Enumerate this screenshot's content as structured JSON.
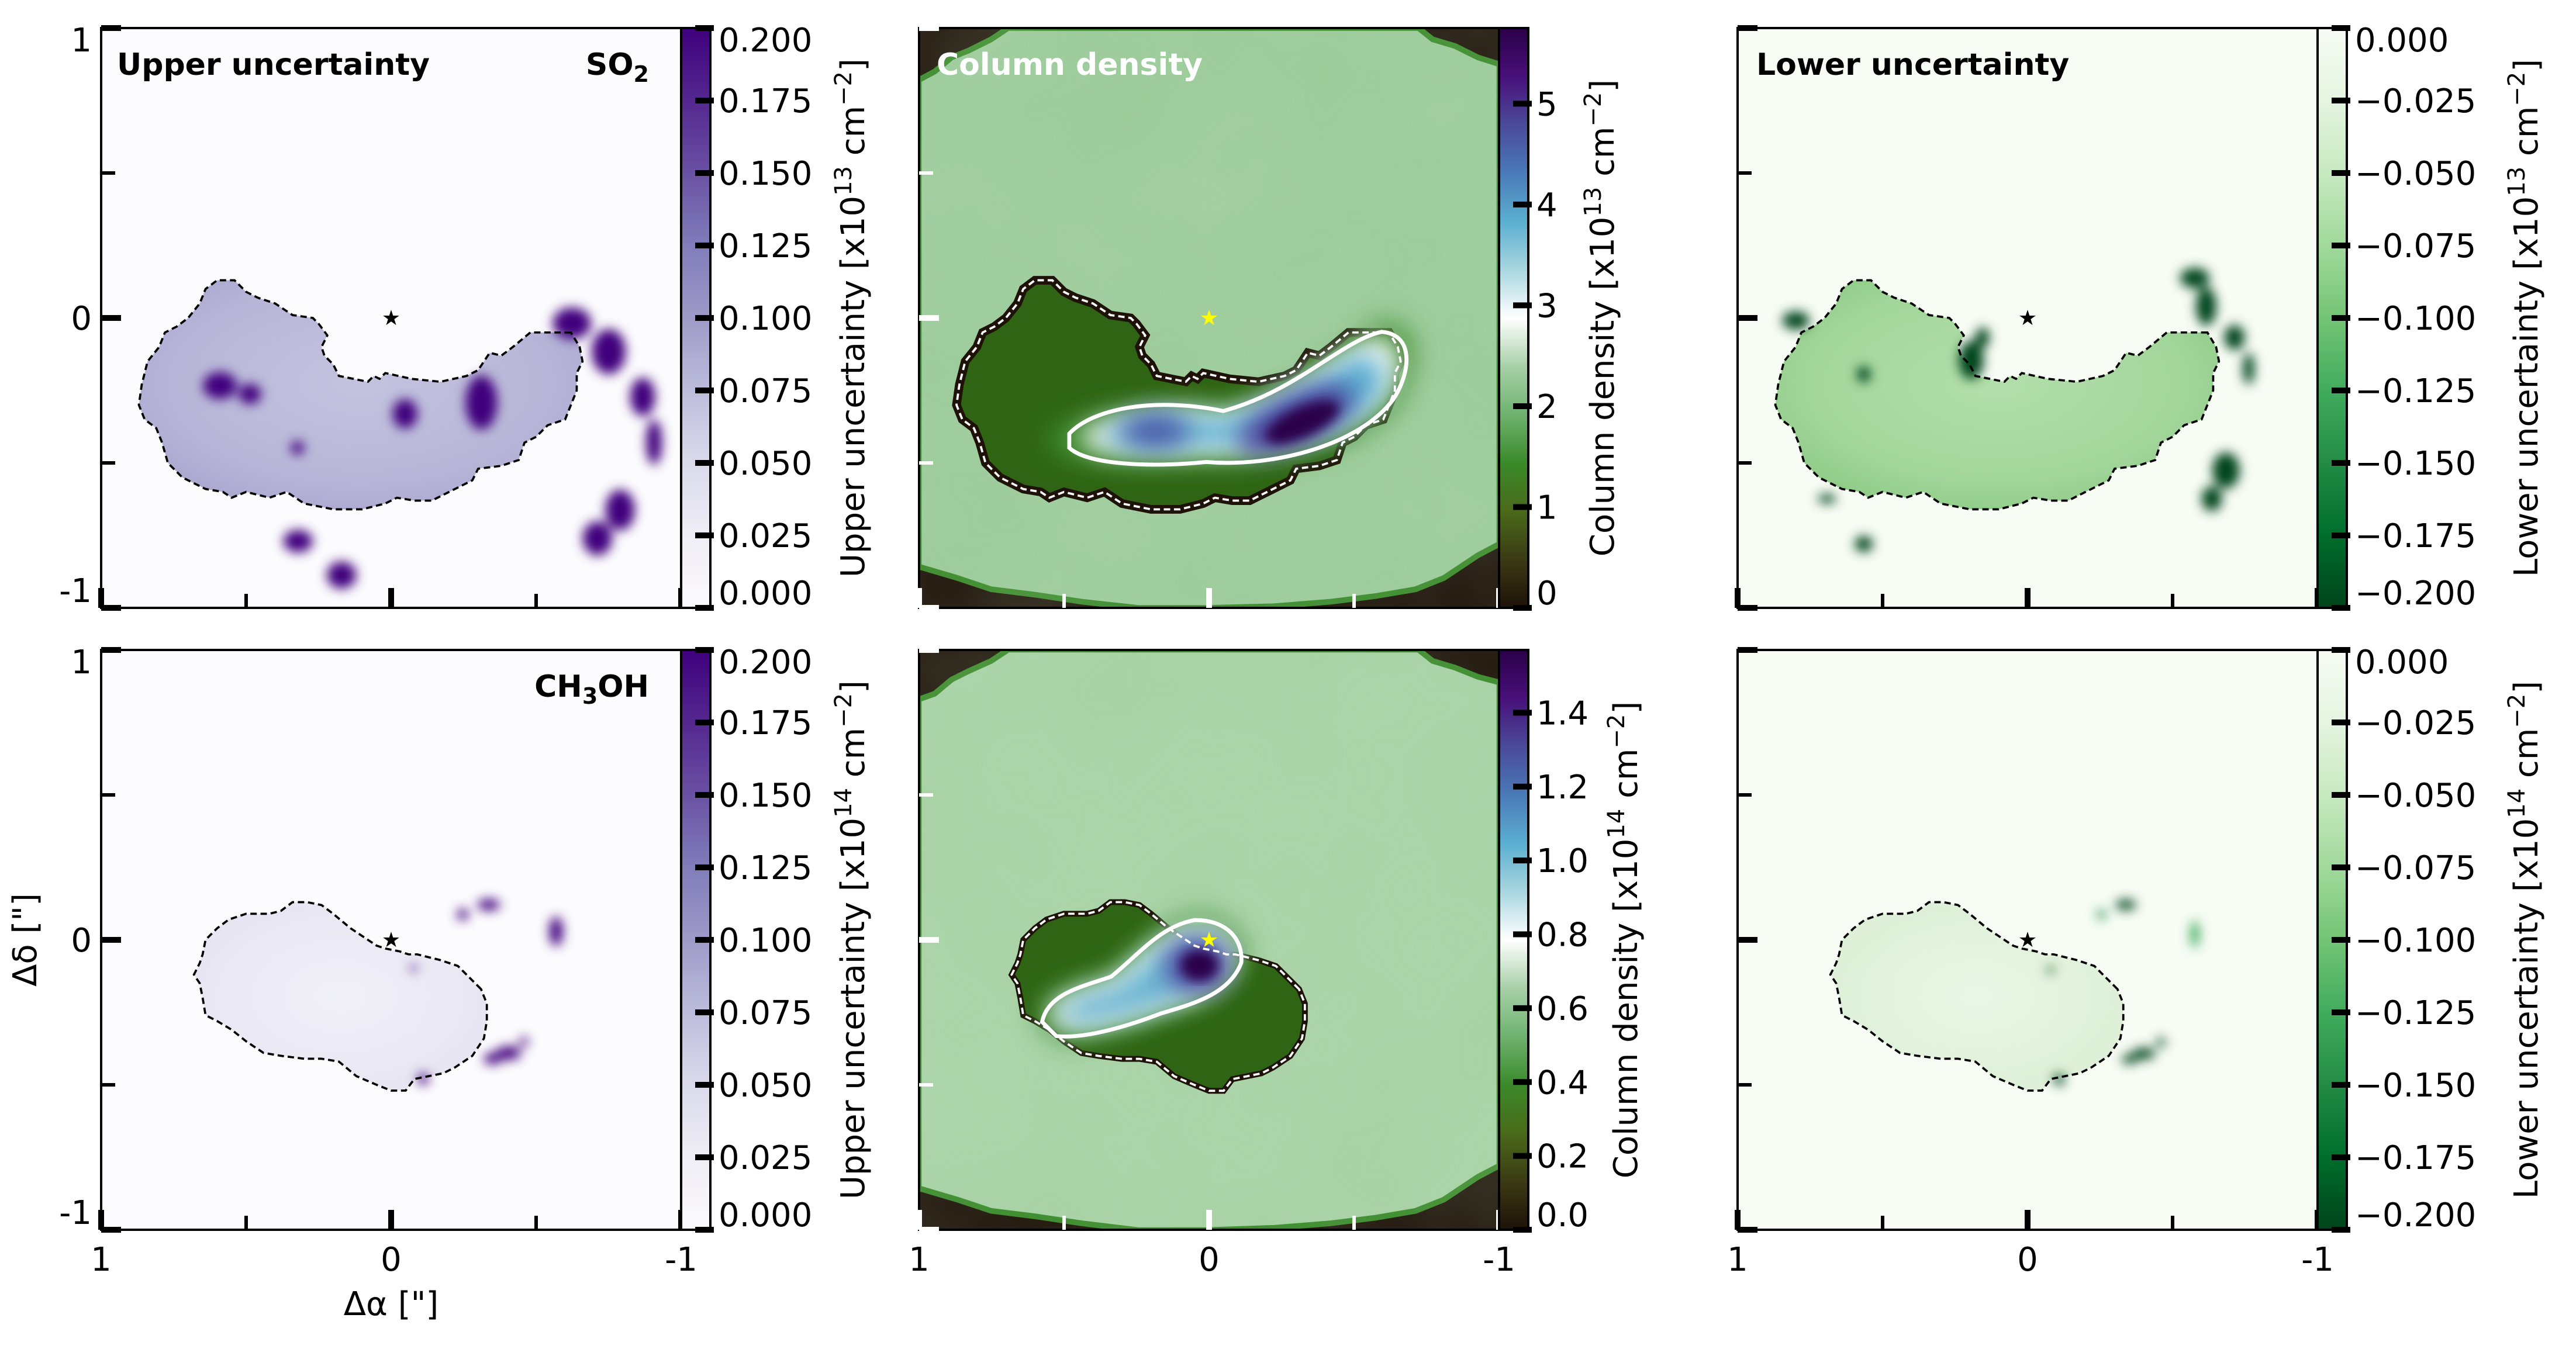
{
  "figure": {
    "xlabel": "Δα [\"]",
    "ylabel": "Δδ [\"]"
  },
  "chart_data": [
    {
      "type": "heatmap",
      "panel": "top-left",
      "molecule": "SO2",
      "molecule_label": "SO",
      "molecule_sub": "2",
      "title": "Upper uncertainty",
      "colormap": "Purples",
      "colorbar_label": "Upper uncertainty [x10",
      "colorbar_exp": "13",
      "colorbar_unit": " cm",
      "colorbar_unit_exp": "−2",
      "colorbar_unit_close": "]",
      "clim": [
        0.0,
        0.2
      ],
      "colorbar_ticks": [
        0.0,
        0.025,
        0.05,
        0.075,
        0.1,
        0.125,
        0.15,
        0.175,
        0.2
      ],
      "colorbar_tick_labels": [
        "0.000",
        "0.025",
        "0.050",
        "0.075",
        "0.100",
        "0.125",
        "0.150",
        "0.175",
        "0.200"
      ],
      "xlim": [
        1,
        -1
      ],
      "ylim": [
        -1,
        1
      ],
      "xticks": [
        1,
        0,
        -1
      ],
      "yticks": [
        1,
        0,
        -1
      ],
      "star": {
        "x": 0,
        "y": 0,
        "color": "#000000"
      },
      "contour_color": "#000000"
    },
    {
      "type": "heatmap",
      "panel": "top-middle",
      "molecule": "SO2",
      "title": "Column density",
      "colormap": "PRGn-like (brown-green-white-blue-purple)",
      "colorbar_label": "Column density [x10",
      "colorbar_exp": "13",
      "colorbar_unit": " cm",
      "colorbar_unit_exp": "−2",
      "colorbar_unit_close": "]",
      "clim": [
        0.0,
        5.75
      ],
      "colorbar_ticks": [
        0,
        1,
        2,
        3,
        4,
        5
      ],
      "colorbar_tick_labels": [
        "0",
        "1",
        "2",
        "3",
        "4",
        "5"
      ],
      "xlim": [
        1,
        -1
      ],
      "ylim": [
        -1,
        1
      ],
      "xticks": [
        1,
        0,
        -1
      ],
      "yticks": [
        1,
        0,
        -1
      ],
      "star": {
        "x": 0,
        "y": 0,
        "color": "#ffff00"
      },
      "contour_color": "#ffffff",
      "peak_value_approx": 5.6
    },
    {
      "type": "heatmap",
      "panel": "top-right",
      "molecule": "SO2",
      "title": "Lower uncertainty",
      "colormap": "Greens_r",
      "colorbar_label": "Lower uncertainty [x10",
      "colorbar_exp": "13",
      "colorbar_unit": " cm",
      "colorbar_unit_exp": "−2",
      "colorbar_unit_close": "]",
      "clim": [
        -0.2,
        0.0
      ],
      "colorbar_ticks": [
        0.0,
        -0.025,
        -0.05,
        -0.075,
        -0.1,
        -0.125,
        -0.15,
        -0.175,
        -0.2
      ],
      "colorbar_tick_labels": [
        "0.000",
        "−0.025",
        "−0.050",
        "−0.075",
        "−0.100",
        "−0.125",
        "−0.150",
        "−0.175",
        "−0.200"
      ],
      "xlim": [
        1,
        -1
      ],
      "ylim": [
        -1,
        1
      ],
      "xticks": [
        1,
        0,
        -1
      ],
      "yticks": [
        1,
        0,
        -1
      ],
      "star": {
        "x": 0,
        "y": 0,
        "color": "#000000"
      },
      "contour_color": "#000000"
    },
    {
      "type": "heatmap",
      "panel": "bottom-left",
      "molecule": "CH3OH",
      "molecule_label": "CH",
      "molecule_sub": "3",
      "molecule_tail": "OH",
      "title": "",
      "colormap": "Purples",
      "colorbar_label": "Upper uncertainty [x10",
      "colorbar_exp": "14",
      "colorbar_unit": " cm",
      "colorbar_unit_exp": "−2",
      "colorbar_unit_close": "]",
      "clim": [
        0.0,
        0.2
      ],
      "colorbar_ticks": [
        0.0,
        0.025,
        0.05,
        0.075,
        0.1,
        0.125,
        0.15,
        0.175,
        0.2
      ],
      "colorbar_tick_labels": [
        "0.000",
        "0.025",
        "0.050",
        "0.075",
        "0.100",
        "0.125",
        "0.150",
        "0.175",
        "0.200"
      ],
      "xlim": [
        1,
        -1
      ],
      "ylim": [
        -1,
        1
      ],
      "xticks": [
        1,
        0,
        -1
      ],
      "yticks": [
        1,
        0,
        -1
      ],
      "xtick_labels": [
        "1",
        "0",
        "-1"
      ],
      "ytick_labels": [
        "1",
        "0",
        "-1"
      ],
      "star": {
        "x": 0,
        "y": 0,
        "color": "#000000"
      },
      "contour_color": "#000000"
    },
    {
      "type": "heatmap",
      "panel": "bottom-middle",
      "molecule": "CH3OH",
      "title": "",
      "colormap": "PRGn-like (brown-green-white-blue-purple)",
      "colorbar_label": "Column density [x10",
      "colorbar_exp": "14",
      "colorbar_unit": " cm",
      "colorbar_unit_exp": "−2",
      "colorbar_unit_close": "]",
      "clim": [
        0.0,
        1.57
      ],
      "colorbar_ticks": [
        0.0,
        0.2,
        0.4,
        0.6,
        0.8,
        1.0,
        1.2,
        1.4
      ],
      "colorbar_tick_labels": [
        "0.0",
        "0.2",
        "0.4",
        "0.6",
        "0.8",
        "1.0",
        "1.2",
        "1.4"
      ],
      "xlim": [
        1,
        -1
      ],
      "ylim": [
        -1,
        1
      ],
      "xticks": [
        1,
        0,
        -1
      ],
      "xtick_labels": [
        "1",
        "0",
        "-1"
      ],
      "star": {
        "x": 0,
        "y": 0,
        "color": "#ffff00"
      },
      "contour_color": "#ffffff",
      "peak_value_approx": 1.55
    },
    {
      "type": "heatmap",
      "panel": "bottom-right",
      "molecule": "CH3OH",
      "title": "",
      "colormap": "Greens_r",
      "colorbar_label": "Lower uncertainty [x10",
      "colorbar_exp": "14",
      "colorbar_unit": " cm",
      "colorbar_unit_exp": "−2",
      "colorbar_unit_close": "]",
      "clim": [
        -0.2,
        0.0
      ],
      "colorbar_ticks": [
        0.0,
        -0.025,
        -0.05,
        -0.075,
        -0.1,
        -0.125,
        -0.15,
        -0.175,
        -0.2
      ],
      "colorbar_tick_labels": [
        "0.000",
        "−0.025",
        "−0.050",
        "−0.075",
        "−0.100",
        "−0.125",
        "−0.150",
        "−0.175",
        "−0.200"
      ],
      "xlim": [
        1,
        -1
      ],
      "ylim": [
        -1,
        1
      ],
      "xticks": [
        1,
        0,
        -1
      ],
      "xtick_labels": [
        "1",
        "0",
        "-1"
      ],
      "star": {
        "x": 0,
        "y": 0,
        "color": "#000000"
      },
      "contour_color": "#000000"
    }
  ],
  "colormaps": {
    "Purples": [
      "#fcfbfd",
      "#efedf5",
      "#dadaeb",
      "#bcbddc",
      "#9e9ac8",
      "#807dba",
      "#6a51a3",
      "#54278f",
      "#3f007d"
    ],
    "Greens_r": [
      "#00441b",
      "#006d2c",
      "#238b45",
      "#41ab5d",
      "#74c476",
      "#a1d99b",
      "#c7e9c0",
      "#e5f5e0",
      "#f7fcf5"
    ],
    "ColumnDensity": [
      "#1e1208",
      "#3b3a14",
      "#4a6a1a",
      "#3a8a2a",
      "#6fb26f",
      "#a8d0a8",
      "#ffffff",
      "#a8d6e0",
      "#5aaed0",
      "#4a7ab8",
      "#4a4a98",
      "#48107a",
      "#2a0048"
    ]
  }
}
